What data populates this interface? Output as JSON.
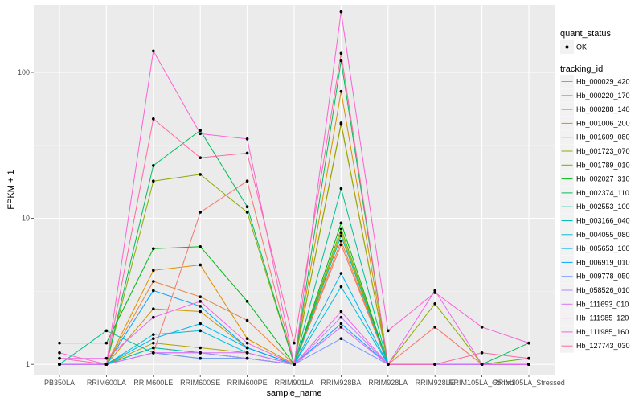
{
  "chart_data": {
    "type": "line",
    "xlabel": "sample_name",
    "ylabel": "FPKM + 1",
    "y_scale": "log10",
    "ylim": [
      0.85,
      290
    ],
    "y_ticks": [
      1,
      10,
      100
    ],
    "y_tick_labels": [
      "1",
      "10",
      "100"
    ],
    "categories": [
      "PB350LA",
      "RRIM600LA",
      "RRIM600LE",
      "RRIM600SE",
      "RRIM600PE",
      "RRIM901LA",
      "RRIM928BA",
      "RRIM928LA",
      "RRIM928LE",
      "RRIM105LA_Control",
      "RRIM105LA_Stressed"
    ],
    "legend_quant": {
      "title": "quant_status",
      "entries": [
        "OK"
      ]
    },
    "legend_title": "tracking_id",
    "series": [
      {
        "name": "Hb_000029_420",
        "color": "#F8766D",
        "values": [
          1.0,
          1.0,
          1.2,
          11.0,
          18.0,
          1.0,
          6.6,
          1.0,
          1.8,
          1.0,
          1.0
        ]
      },
      {
        "name": "Hb_000220_170",
        "color": "#EC8239",
        "values": [
          1.0,
          1.0,
          3.7,
          2.9,
          2.0,
          1.0,
          7.0,
          1.0,
          1.0,
          1.0,
          1.0
        ]
      },
      {
        "name": "Hb_000288_140",
        "color": "#DB8E00",
        "values": [
          1.0,
          1.0,
          4.4,
          4.8,
          1.5,
          1.0,
          74,
          1.0,
          1.0,
          1.0,
          1.0
        ]
      },
      {
        "name": "Hb_001006_200",
        "color": "#C79800",
        "values": [
          1.0,
          1.0,
          2.4,
          2.3,
          1.3,
          1.0,
          45,
          1.0,
          1.0,
          1.0,
          1.0
        ]
      },
      {
        "name": "Hb_001609_080",
        "color": "#AEA200",
        "values": [
          1.0,
          1.0,
          1.4,
          1.3,
          1.2,
          1.0,
          8.0,
          1.0,
          1.0,
          1.0,
          1.0
        ]
      },
      {
        "name": "Hb_001723_070",
        "color": "#8FAA00",
        "values": [
          1.0,
          1.0,
          18,
          20,
          11,
          1.0,
          44,
          1.0,
          2.6,
          1.0,
          1.0
        ]
      },
      {
        "name": "Hb_001789_010",
        "color": "#64B200",
        "values": [
          1.0,
          1.0,
          1.3,
          1.2,
          1.1,
          1.0,
          8.5,
          1.0,
          1.0,
          1.0,
          1.1
        ]
      },
      {
        "name": "Hb_002027_310",
        "color": "#00B813",
        "values": [
          1.4,
          1.4,
          6.2,
          6.4,
          2.7,
          1.0,
          9.3,
          1.0,
          1.0,
          1.0,
          1.0
        ]
      },
      {
        "name": "Hb_002374_110",
        "color": "#00BD5C",
        "values": [
          1.0,
          1.0,
          23,
          40,
          12,
          1.0,
          120,
          1.0,
          1.0,
          1.0,
          1.4
        ]
      },
      {
        "name": "Hb_002553_100",
        "color": "#00C08E",
        "values": [
          1.0,
          1.7,
          1.2,
          1.1,
          1.1,
          1.0,
          16,
          1.0,
          1.0,
          1.0,
          1.0
        ]
      },
      {
        "name": "Hb_003166_040",
        "color": "#00C0B8",
        "values": [
          1.0,
          1.0,
          1.3,
          1.2,
          1.1,
          1.0,
          7.6,
          1.0,
          1.0,
          1.0,
          1.0
        ]
      },
      {
        "name": "Hb_004055_080",
        "color": "#00BCD9",
        "values": [
          1.0,
          1.0,
          1.6,
          1.7,
          1.2,
          1.0,
          3.4,
          1.0,
          1.0,
          1.0,
          1.0
        ]
      },
      {
        "name": "Hb_005653_100",
        "color": "#00B4EF",
        "values": [
          1.0,
          1.0,
          1.5,
          1.9,
          1.3,
          1.0,
          4.2,
          1.0,
          1.0,
          1.0,
          1.0
        ]
      },
      {
        "name": "Hb_006919_010",
        "color": "#00A8FF",
        "values": [
          1.0,
          1.0,
          3.2,
          2.5,
          1.3,
          1.0,
          1.9,
          1.0,
          1.0,
          1.0,
          1.0
        ]
      },
      {
        "name": "Hb_009778_050",
        "color": "#7997FF",
        "values": [
          1.0,
          1.0,
          1.2,
          1.1,
          1.1,
          1.0,
          1.5,
          1.0,
          1.0,
          1.0,
          1.0
        ]
      },
      {
        "name": "Hb_058526_010",
        "color": "#B983FF",
        "values": [
          1.0,
          1.0,
          1.2,
          1.2,
          1.1,
          1.0,
          2.1,
          1.0,
          1.0,
          1.0,
          1.0
        ]
      },
      {
        "name": "Hb_111693_010",
        "color": "#DC71FA",
        "values": [
          1.0,
          1.0,
          1.2,
          1.2,
          1.2,
          1.0,
          1.8,
          1.0,
          1.0,
          1.0,
          1.0
        ]
      },
      {
        "name": "Hb_111985_120",
        "color": "#F066EA",
        "values": [
          1.1,
          1.1,
          2.1,
          2.7,
          1.4,
          1.0,
          2.3,
          1.0,
          3.2,
          1.0,
          1.0
        ]
      },
      {
        "name": "Hb_111985_160",
        "color": "#FC61D5",
        "values": [
          1.2,
          1.0,
          140,
          38,
          35,
          1.0,
          260,
          1.7,
          3.1,
          1.8,
          1.4
        ]
      },
      {
        "name": "Hb_127743_030",
        "color": "#FF67A4",
        "values": [
          1.1,
          1.0,
          48,
          26,
          28,
          1.4,
          135,
          1.0,
          1.0,
          1.2,
          1.1
        ]
      }
    ]
  }
}
